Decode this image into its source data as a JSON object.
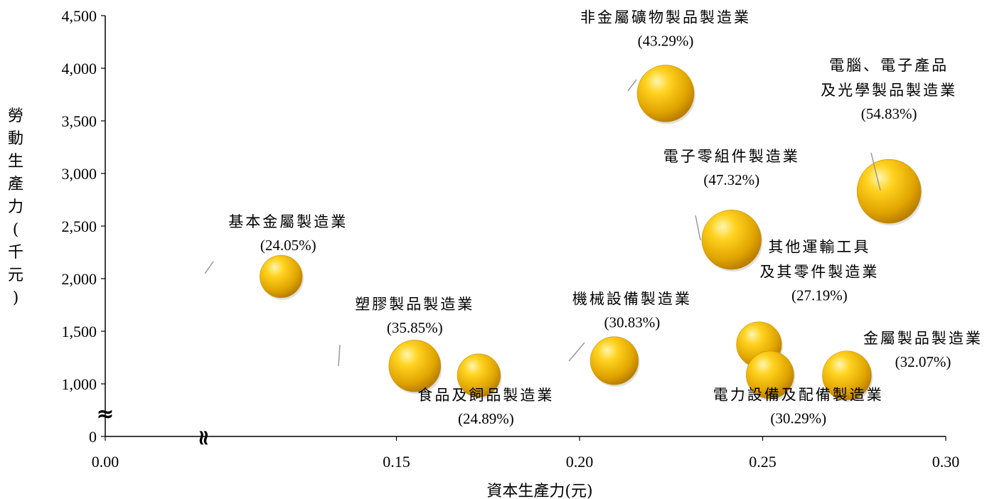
{
  "chart_data": {
    "type": "bubble",
    "xlabel": "資本生產力(元)",
    "ylabel": "勞動生產力(千元)",
    "x_ticks": [
      "0.00",
      "0.15",
      "0.20",
      "0.25",
      "0.30"
    ],
    "y_ticks": [
      "0",
      "1,000",
      "1,500",
      "2,000",
      "2,500",
      "3,000",
      "3,500",
      "4,000",
      "4,500"
    ],
    "xlim": [
      0.1,
      0.3
    ],
    "ylim": [
      500,
      4500
    ],
    "x_axis_break": true,
    "y_axis_break": true,
    "break_symbol": "≈",
    "points": [
      {
        "label": [
          "基本金屬製造業"
        ],
        "pct": "(24.05%)",
        "x": 0.1185,
        "y": 2020,
        "size": 24.05,
        "color": "#e8b000"
      },
      {
        "label": [
          "塑膠製品製造業"
        ],
        "pct": "(35.85%)",
        "x": 0.155,
        "y": 1170,
        "size": 35.85,
        "color": "#e8b000"
      },
      {
        "label": [
          "食品及飼品製造業"
        ],
        "pct": "(24.89%)",
        "x": 0.1725,
        "y": 1080,
        "size": 24.89,
        "color": "#e8b000"
      },
      {
        "label": [
          "機械設備製造業"
        ],
        "pct": "(30.83%)",
        "x": 0.2095,
        "y": 1220,
        "size": 30.83,
        "color": "#e8b000"
      },
      {
        "label": [
          "非金屬礦物製品製造業"
        ],
        "pct": "(43.29%)",
        "x": 0.2235,
        "y": 3760,
        "size": 43.29,
        "color": "#e8b000"
      },
      {
        "label": [
          "電子零組件製造業"
        ],
        "pct": "(47.32%)",
        "x": 0.2415,
        "y": 2370,
        "size": 47.32,
        "color": "#e8b000"
      },
      {
        "label": [
          "其他運輸工具",
          "及其零件製造業"
        ],
        "pct": "(27.19%)",
        "x": 0.249,
        "y": 1375,
        "size": 27.19,
        "color": "#e8b000"
      },
      {
        "label": [
          "電力設備及配備製造業"
        ],
        "pct": "(30.29%)",
        "x": 0.252,
        "y": 1085,
        "size": 30.29,
        "color": "#e8b000"
      },
      {
        "label": [
          "金屬製品製造業"
        ],
        "pct": "(32.07%)",
        "x": 0.273,
        "y": 1080,
        "size": 32.07,
        "color": "#e8b000"
      },
      {
        "label": [
          "電腦、電子產品",
          "及光學製品製造業"
        ],
        "pct": "(54.83%)",
        "x": 0.2845,
        "y": 2830,
        "size": 54.83,
        "color": "#e8b000"
      }
    ]
  }
}
